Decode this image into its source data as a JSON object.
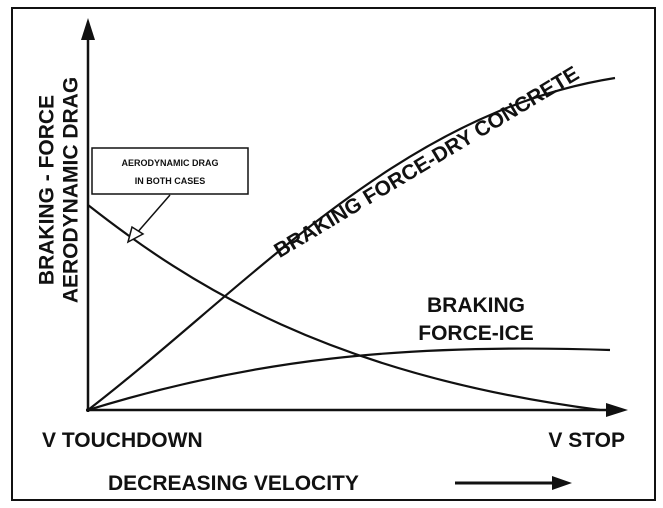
{
  "y_axis_label": [
    "BRAKING - FORCE",
    "AERODYNAMIC DRAG"
  ],
  "x_axis_start": "V TOUCHDOWN",
  "x_axis_end": "V STOP",
  "x_axis_label": "DECREASING VELOCITY",
  "curve_labels": {
    "dry": "BRAKING FORCE-DRY CONCRETE",
    "ice": [
      "BRAKING",
      "FORCE-ICE"
    ]
  },
  "annotation": [
    "AERODYNAMIC DRAG",
    "IN BOTH CASES"
  ]
}
